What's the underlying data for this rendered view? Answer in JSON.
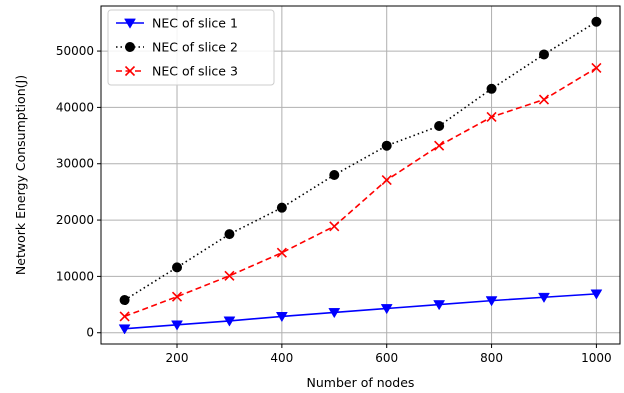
{
  "chart_data": {
    "type": "line",
    "title": "",
    "xlabel": "Number of nodes",
    "ylabel": "Network Energy Consumption(J)",
    "x": [
      100,
      200,
      300,
      400,
      500,
      600,
      700,
      800,
      900,
      1000
    ],
    "xlim": [
      55,
      1045
    ],
    "ylim": [
      -2000,
      58000
    ],
    "xticks": [
      200,
      400,
      600,
      800,
      1000
    ],
    "yticks": [
      0,
      10000,
      20000,
      30000,
      40000,
      50000
    ],
    "grid": true,
    "legend_position": "top-left",
    "series": [
      {
        "name": "NEC of slice 1",
        "color": "#0000ff",
        "line_style": "solid",
        "marker": "triangle-down",
        "values": [
          700,
          1400,
          2100,
          2900,
          3600,
          4300,
          5000,
          5700,
          6300,
          6900
        ]
      },
      {
        "name": "NEC of slice 2",
        "color": "#000000",
        "line_style": "dotted",
        "marker": "circle",
        "values": [
          5800,
          11600,
          17500,
          22200,
          28000,
          33200,
          36700,
          43300,
          49400,
          55200
        ]
      },
      {
        "name": "NEC of slice 3",
        "color": "#ff0000",
        "line_style": "dashed",
        "marker": "x",
        "values": [
          2900,
          6400,
          10100,
          14200,
          18900,
          27100,
          33200,
          38300,
          41400,
          47000
        ]
      }
    ]
  }
}
